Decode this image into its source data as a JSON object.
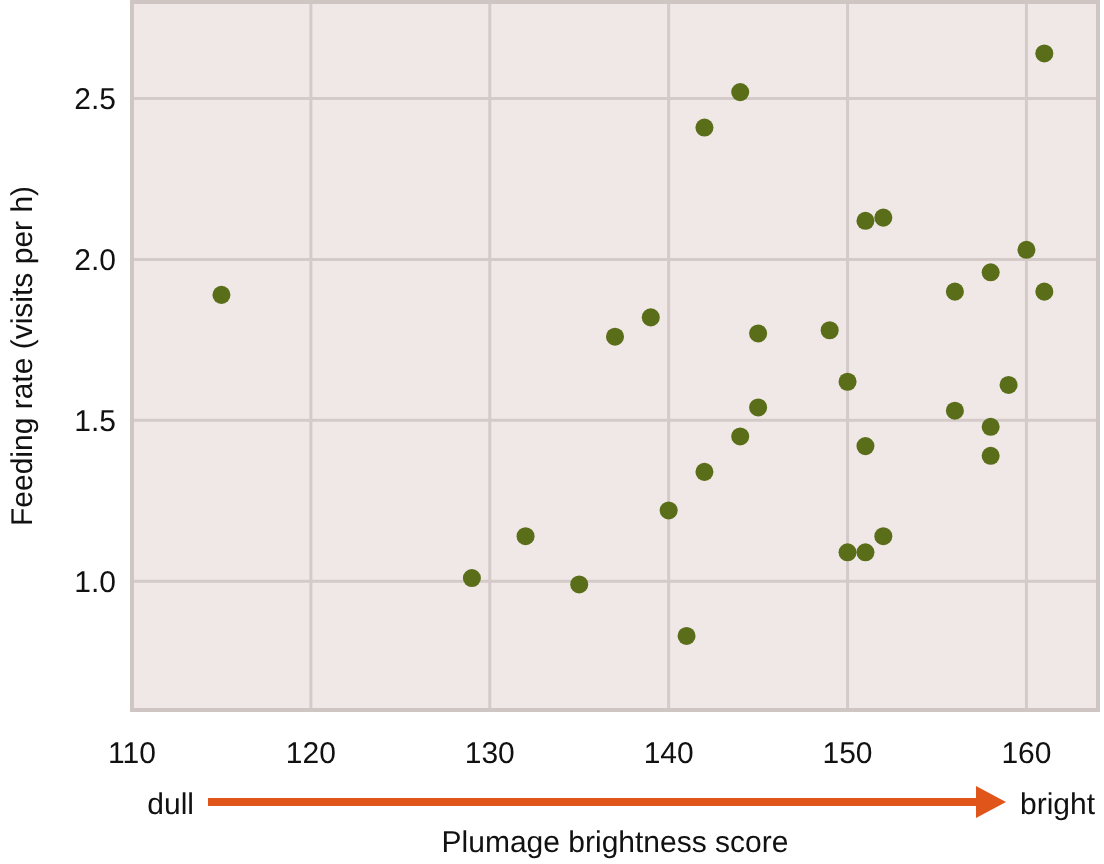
{
  "chart_data": {
    "type": "scatter",
    "xlabel": "Plumage brightness score",
    "ylabel": "Feeding rate (visits per h)",
    "annotations": [
      "dull",
      "bright"
    ],
    "x": [
      115,
      129,
      132,
      161,
      144,
      142,
      151,
      152,
      160,
      158,
      156,
      161,
      137,
      139,
      145,
      149,
      150,
      159,
      145,
      156,
      144,
      158,
      151,
      158,
      142,
      140,
      135,
      141,
      150,
      151,
      152
    ],
    "series": [
      {
        "color": "#5a6e1a",
        "values": [
          1.89,
          1.01,
          1.14,
          2.64,
          2.52,
          2.41,
          2.12,
          2.13,
          2.03,
          1.96,
          1.9,
          1.9,
          1.76,
          1.82,
          1.77,
          1.78,
          1.62,
          1.61,
          1.54,
          1.53,
          1.45,
          1.48,
          1.42,
          1.39,
          1.34,
          1.22,
          0.99,
          0.83,
          1.09,
          1.09,
          1.14
        ]
      }
    ],
    "xlim": [
      110,
      164
    ],
    "xticks": [
      110,
      120,
      130,
      140,
      150,
      160
    ],
    "ylim": [
      0.6,
      2.8
    ],
    "yticks": [
      {
        "value": 1,
        "label": "1.0"
      },
      1.5,
      {
        "value": 2,
        "label": "2.0"
      },
      2.5
    ],
    "grid": true,
    "marker": "circle",
    "legend": false
  }
}
